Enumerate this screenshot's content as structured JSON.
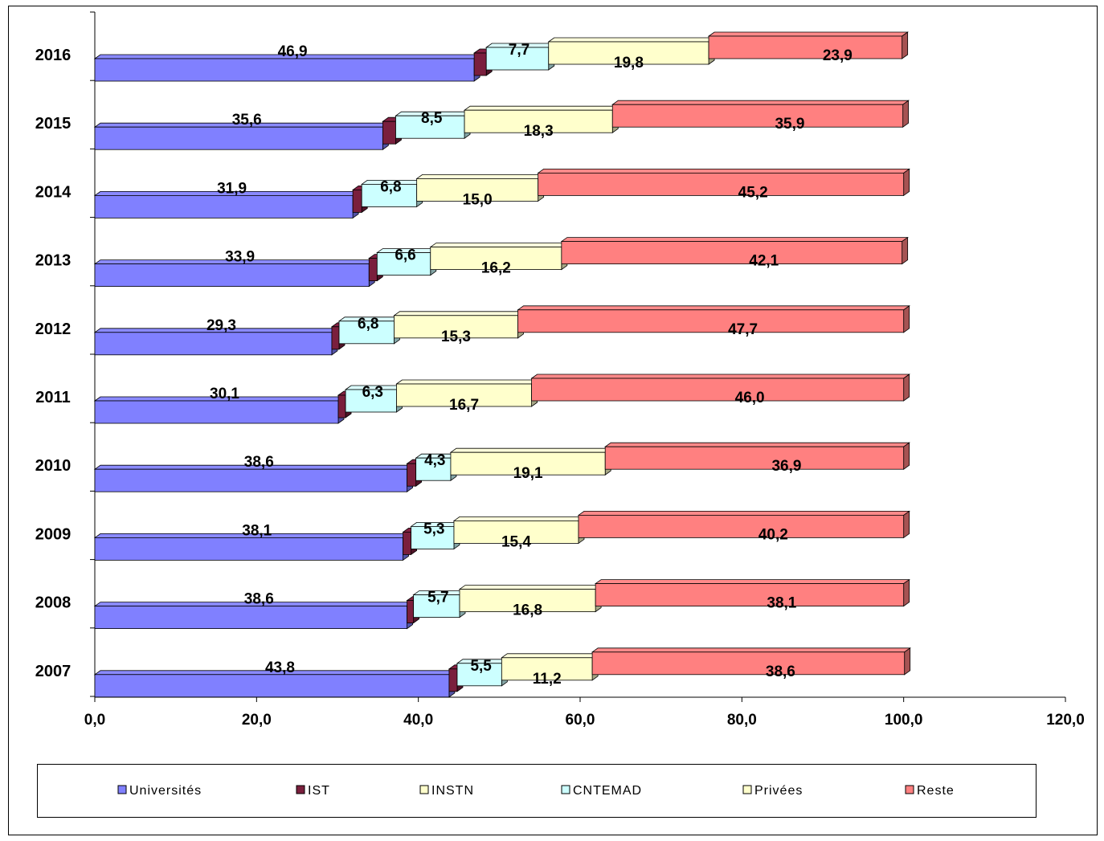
{
  "chart_data": {
    "type": "bar",
    "orientation": "horizontal",
    "stacked": true,
    "style": "3d",
    "categories": [
      "2016",
      "2015",
      "2014",
      "2013",
      "2012",
      "2011",
      "2010",
      "2009",
      "2008",
      "2007"
    ],
    "series": [
      {
        "name": "Universités",
        "color": "#8080ff",
        "values": [
          46.9,
          35.6,
          31.9,
          33.9,
          29.3,
          30.1,
          38.6,
          38.1,
          38.6,
          43.8
        ],
        "labels": [
          "46,9",
          "35,6",
          "31,9",
          "33,9",
          "29,3",
          "30,1",
          "38,6",
          "38,1",
          "38,6",
          "43,8"
        ]
      },
      {
        "name": "IST",
        "color": "#7a1f3d",
        "values": [
          1.5,
          1.6,
          1.1,
          1.0,
          0.9,
          0.9,
          1.1,
          1.0,
          0.8,
          1.0
        ],
        "labels": [
          "",
          "",
          "",
          "",
          "",
          "",
          "",
          "",
          "",
          ""
        ]
      },
      {
        "name": "INSTN",
        "color": "#ffffcc",
        "values": [
          0,
          0,
          0,
          0,
          0,
          0,
          0,
          0,
          0,
          0
        ],
        "labels": [
          "",
          "",
          "",
          "",
          "",
          "",
          "",
          "",
          "",
          ""
        ]
      },
      {
        "name": "CNTEMAD",
        "color": "#ccffff",
        "values": [
          7.7,
          8.5,
          6.8,
          6.6,
          6.8,
          6.3,
          4.3,
          5.3,
          5.7,
          5.5
        ],
        "labels": [
          "7,7",
          "8,5",
          "6,8",
          "6,6",
          "6,8",
          "6,3",
          "4,3",
          "5,3",
          "5,7",
          "5,5"
        ]
      },
      {
        "name": "Privées",
        "color": "#ffffcc",
        "values": [
          19.8,
          18.3,
          15.0,
          16.2,
          15.3,
          16.7,
          19.1,
          15.4,
          16.8,
          11.2
        ],
        "labels": [
          "19,8",
          "18,3",
          "15,0",
          "16,2",
          "15,3",
          "16,7",
          "19,1",
          "15,4",
          "16,8",
          "11,2"
        ]
      },
      {
        "name": "Reste",
        "color": "#ff8080",
        "values": [
          23.9,
          35.9,
          45.2,
          42.1,
          47.7,
          46.0,
          36.9,
          40.2,
          38.1,
          38.6
        ],
        "labels": [
          "23,9",
          "35,9",
          "45,2",
          "42,1",
          "47,7",
          "46,0",
          "36,9",
          "40,2",
          "38,1",
          "38,6"
        ]
      }
    ],
    "xlim": [
      0,
      120
    ],
    "x_ticks": [
      0,
      20,
      40,
      60,
      80,
      100,
      120
    ],
    "x_tick_labels": [
      "0,0",
      "20,0",
      "40,0",
      "60,0",
      "80,0",
      "100,0",
      "120,0"
    ],
    "title": "",
    "xlabel": "",
    "ylabel": "",
    "grid": false,
    "legend_position": "bottom"
  }
}
